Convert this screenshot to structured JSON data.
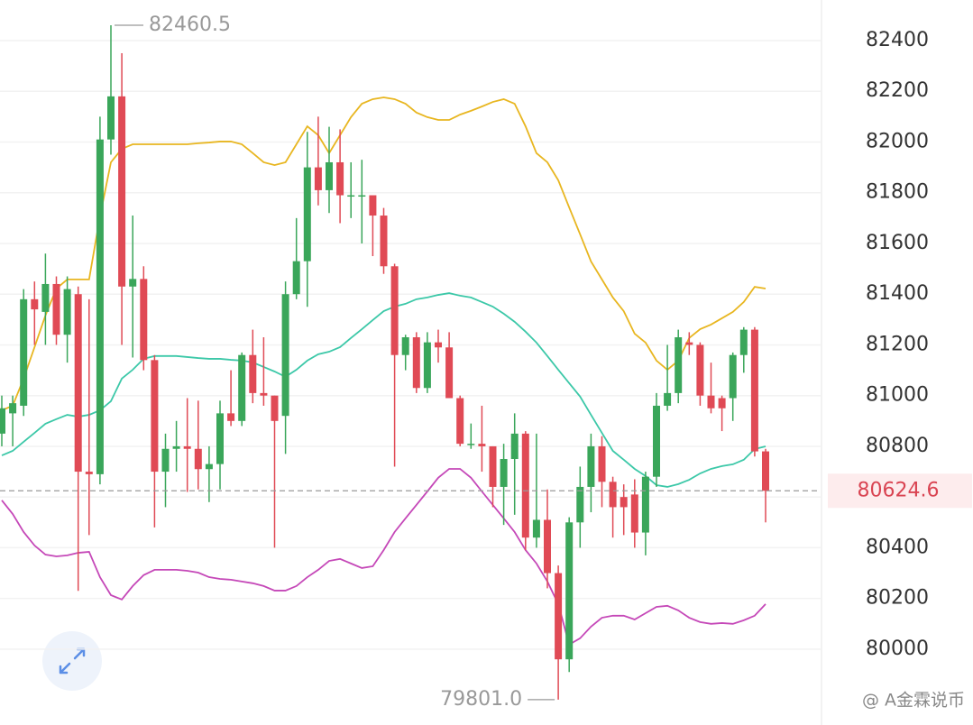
{
  "chart_data": {
    "type": "candlestick",
    "categories": [
      null,
      null,
      null,
      null,
      null,
      null,
      null,
      null,
      null,
      null,
      null,
      null,
      null,
      null,
      null,
      null,
      null,
      null,
      null,
      null,
      null,
      null,
      null,
      null,
      null,
      null,
      null,
      null,
      null,
      null,
      null,
      null,
      null,
      null,
      null,
      null,
      null,
      null,
      null,
      null,
      null,
      null,
      null,
      null,
      null,
      null,
      null,
      null,
      null,
      null,
      null,
      null,
      null,
      null,
      null,
      null,
      null,
      null,
      null,
      null,
      null,
      null,
      null,
      null,
      null,
      null,
      null,
      null,
      null,
      null,
      null
    ],
    "open": [
      80850,
      80930,
      80960,
      81380,
      81330,
      81440,
      81240,
      81400,
      80700,
      80690,
      82010,
      82180,
      81430,
      81460,
      81140,
      80700,
      80790,
      80800,
      80790,
      80710,
      80730,
      80930,
      80900,
      81160,
      81010,
      81000,
      80920,
      81400,
      81530,
      81900,
      81810,
      81920,
      81790,
      81790,
      81790,
      81710,
      81510,
      81160,
      81230,
      81030,
      81210,
      81190,
      80990,
      80810,
      80810,
      80800,
      80640,
      80750,
      80850,
      80440,
      80510,
      80300,
      79960,
      80500,
      80640,
      80800,
      80660,
      80600,
      80610,
      80460,
      80680,
      80960,
      81010,
      81210,
      81200,
      81000,
      80990,
      80990,
      81160,
      81260,
      80780
    ],
    "high": [
      81000,
      81000,
      81420,
      81450,
      81560,
      81470,
      81470,
      81430,
      81380,
      82100,
      82460.5,
      82350,
      81710,
      81510,
      81160,
      80850,
      80900,
      80990,
      80980,
      80800,
      80980,
      81100,
      81170,
      81260,
      81230,
      81000,
      81450,
      81700,
      82040,
      82100,
      82060,
      82050,
      81920,
      81930,
      81780,
      81740,
      81520,
      81240,
      81250,
      81250,
      81260,
      81250,
      81000,
      80890,
      80960,
      80800,
      80810,
      80930,
      80860,
      80850,
      80630,
      80330,
      80520,
      80720,
      80850,
      80840,
      80680,
      80650,
      80670,
      80700,
      81010,
      81200,
      81260,
      81250,
      81210,
      81130,
      81000,
      81170,
      81270,
      81270,
      80790
    ],
    "low": [
      80800,
      80800,
      80920,
      81200,
      81200,
      81200,
      81130,
      80230,
      80450,
      80650,
      81950,
      81200,
      81150,
      81100,
      80480,
      80560,
      80700,
      80620,
      80630,
      80580,
      80630,
      80880,
      80880,
      80970,
      80960,
      80400,
      80770,
      81380,
      81350,
      81750,
      81720,
      81680,
      81700,
      81600,
      81550,
      81480,
      80720,
      81100,
      81010,
      81010,
      81130,
      80990,
      80800,
      80790,
      80700,
      80560,
      80490,
      80530,
      80390,
      80400,
      80240,
      79801,
      79910,
      80400,
      80540,
      80560,
      80440,
      80450,
      80400,
      80370,
      80640,
      80940,
      80970,
      81160,
      80960,
      80930,
      80860,
      80900,
      81090,
      80760,
      80500
    ],
    "close": [
      80950,
      80970,
      81380,
      81340,
      81440,
      81240,
      81420,
      80700,
      80690,
      82010,
      82180,
      81430,
      81460,
      81140,
      80700,
      80790,
      80800,
      80790,
      80710,
      80730,
      80930,
      80900,
      81160,
      81010,
      81000,
      80900,
      81400,
      81530,
      81900,
      81810,
      81920,
      81790,
      81790,
      81790,
      81710,
      81510,
      81160,
      81230,
      81030,
      81210,
      81190,
      80990,
      80810,
      80810,
      80800,
      80640,
      80750,
      80850,
      80440,
      80510,
      80300,
      79960,
      80500,
      80640,
      80800,
      80660,
      80560,
      80560,
      80460,
      80680,
      80960,
      81010,
      81230,
      81200,
      81000,
      80950,
      80950,
      81160,
      81260,
      80780,
      80624.6
    ],
    "up_color": "#3aa65a",
    "down_color": "#e04a55",
    "lines": [
      {
        "color": "#e8b620",
        "values": [
          80942,
          80960,
          81067,
          81191,
          81316,
          81422,
          81458,
          81458,
          81458,
          81707,
          81920,
          81973,
          81991,
          81991,
          81991,
          81991,
          81991,
          81991,
          81995,
          81998,
          82002,
          82002,
          81991,
          81956,
          81920,
          81909,
          81920,
          81991,
          82062,
          82027,
          81956,
          82027,
          82098,
          82151,
          82169,
          82176,
          82169,
          82151,
          82116,
          82098,
          82087,
          82087,
          82108,
          82123,
          82140,
          82158,
          82169,
          82151,
          82062,
          81956,
          81920,
          81849,
          81742,
          81636,
          81529,
          81458,
          81387,
          81333,
          81244,
          81209,
          81138,
          81102,
          81138,
          81227,
          81262,
          81280,
          81305,
          81330,
          81369,
          81429,
          81422
        ]
      },
      {
        "color": "#3cc8a8",
        "values": [
          80764,
          80782,
          80818,
          80853,
          80889,
          80907,
          80924,
          80917,
          80924,
          80942,
          80978,
          81067,
          81102,
          81145,
          81156,
          81156,
          81156,
          81152,
          81148,
          81145,
          81145,
          81141,
          81138,
          81131,
          81113,
          81095,
          81074,
          81102,
          81138,
          81163,
          81173,
          81191,
          81227,
          81262,
          81298,
          81333,
          81351,
          81362,
          81380,
          81387,
          81397,
          81404,
          81394,
          81387,
          81369,
          81351,
          81323,
          81291,
          81252,
          81209,
          81156,
          81102,
          81049,
          80996,
          80924,
          80853,
          80782,
          80747,
          80711,
          80683,
          80647,
          80640,
          80651,
          80668,
          80693,
          80711,
          80722,
          80729,
          80747,
          80789,
          80800
        ]
      },
      {
        "color": "#c548b8",
        "values": [
          80587,
          80533,
          80462,
          80409,
          80373,
          80366,
          80370,
          80380,
          80384,
          80284,
          80213,
          80196,
          80249,
          80292,
          80313,
          80313,
          80313,
          80309,
          80302,
          80284,
          80277,
          80274,
          80267,
          80260,
          80249,
          80231,
          80231,
          80249,
          80284,
          80313,
          80348,
          80356,
          80338,
          80320,
          80327,
          80391,
          80462,
          80516,
          80569,
          80622,
          80676,
          80711,
          80711,
          80676,
          80622,
          80569,
          80516,
          80462,
          80391,
          80338,
          80267,
          80178,
          80018,
          80043,
          80089,
          80124,
          80132,
          80132,
          80117,
          80142,
          80167,
          80171,
          80153,
          80124,
          80107,
          80100,
          80103,
          80100,
          80114,
          80132,
          80178
        ]
      }
    ],
    "ylim": [
      79701,
      82560
    ],
    "yticks": [
      80000,
      80200,
      80400,
      80600,
      80800,
      81000,
      81200,
      81400,
      81600,
      81800,
      82000,
      82200,
      82400
    ],
    "grid": true,
    "max_marker": 82460.5,
    "min_marker": {
      "value": 79801,
      "label": "79801.0"
    },
    "last_price": 80624.6
  },
  "watermark": "@ A金霖说币"
}
